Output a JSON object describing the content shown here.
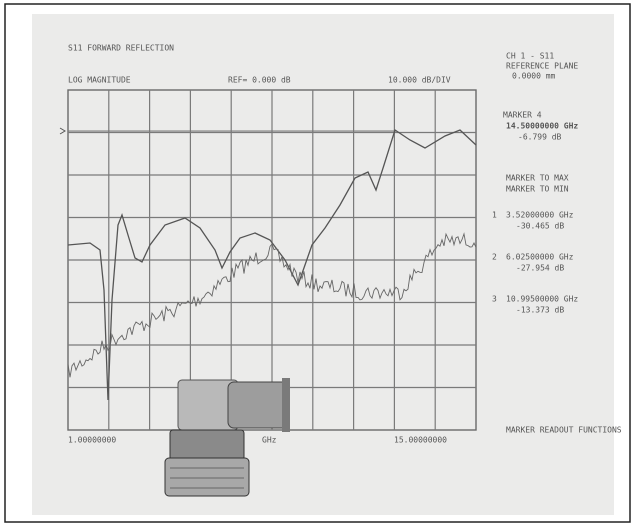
{
  "header": {
    "title": "S11 FORWARD REFLECTION",
    "format": "LOG MAGNITUDE",
    "reference": "REF= 0.000 dB",
    "scale": "10.000 dB/DIV"
  },
  "channel": {
    "name": "CH 1 - S11",
    "plane_label": "REFERENCE PLANE",
    "plane_value": "0.0000 mm"
  },
  "active_marker": {
    "name": "MARKER 4",
    "frequency": "14.50000000 GHz",
    "level": "-6.799 dB"
  },
  "functions": [
    "MARKER TO MAX",
    "MARKER TO MIN"
  ],
  "markers": [
    {
      "number": "1",
      "frequency": "3.52000000 GHz",
      "level": "-30.465 dB"
    },
    {
      "number": "2",
      "frequency": "6.02500000 GHz",
      "level": "-27.954 dB"
    },
    {
      "number": "3",
      "frequency": "10.99500000 GHz",
      "level": "-13.373 dB"
    }
  ],
  "x_axis": {
    "start": "1.00000000",
    "unit": "GHz",
    "stop": "15.00000000"
  },
  "footer": "MARKER READOUT FUNCTIONS"
}
